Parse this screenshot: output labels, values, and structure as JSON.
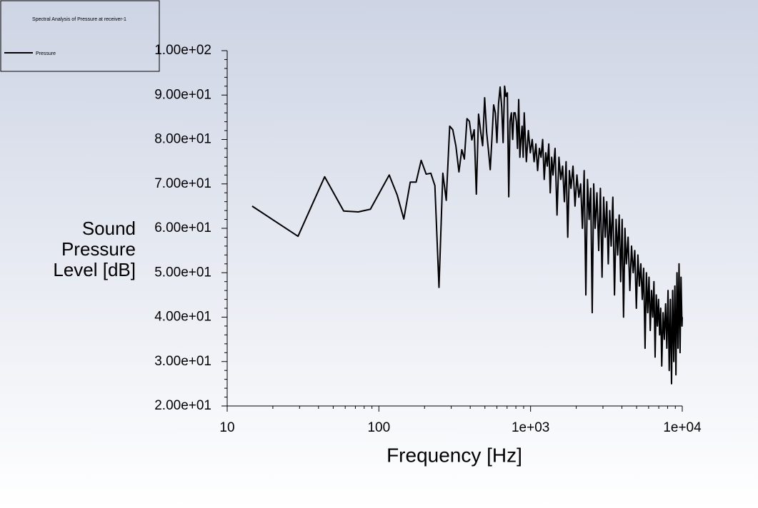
{
  "chart_data": {
    "type": "line",
    "legend_title": "Spectral Analysis of Pressure at receiver-1",
    "xlabel": "Frequency [Hz]",
    "ylabel": "Sound Pressure Level [dB]",
    "xscale": "log",
    "xlim": [
      10,
      10000
    ],
    "ylim": [
      20,
      100
    ],
    "xticks": [
      10,
      100,
      {
        "value": 1000,
        "label": "1e+03"
      },
      {
        "value": 10000,
        "label": "1e+04"
      }
    ],
    "yticks": [
      {
        "value": 20,
        "label": "2.00e+01"
      },
      {
        "value": 30,
        "label": "3.00e+01"
      },
      {
        "value": 40,
        "label": "4.00e+01"
      },
      {
        "value": 50,
        "label": "5.00e+01"
      },
      {
        "value": 60,
        "label": "6.00e+01"
      },
      {
        "value": 70,
        "label": "7.00e+01"
      },
      {
        "value": 80,
        "label": "8.00e+01"
      },
      {
        "value": 90,
        "label": "9.00e+01"
      },
      {
        "value": 100,
        "label": "1.00e+02"
      }
    ],
    "legend": "top-left",
    "x": [
      14.6,
      29.3,
      43.9,
      58.6,
      73.2,
      87.9,
      117,
      132,
      146,
      161,
      176,
      190,
      205,
      220,
      234,
      249,
      264,
      278,
      293,
      307,
      322,
      337,
      352,
      366,
      381,
      395,
      410,
      425,
      439,
      454,
      469,
      483,
      498,
      513,
      527,
      542,
      557,
      571,
      586,
      600,
      615,
      630,
      645,
      659,
      674,
      688,
      703,
      718,
      732,
      747,
      762,
      776,
      791,
      806,
      820,
      835,
      850,
      864,
      879,
      894,
      908,
      938,
      967,
      996,
      1025,
      1055,
      1084,
      1113,
      1143,
      1172,
      1201,
      1230,
      1260,
      1289,
      1318,
      1348,
      1377,
      1406,
      1450,
      1494,
      1538,
      1582,
      1626,
      1670,
      1714,
      1758,
      1802,
      1846,
      1904,
      1963,
      2021,
      2080,
      2138,
      2197,
      2256,
      2314,
      2373,
      2432,
      2490,
      2549,
      2607,
      2666,
      2739,
      2812,
      2886,
      2959,
      3032,
      3105,
      3178,
      3252,
      3325,
      3398,
      3486,
      3574,
      3662,
      3750,
      3838,
      3926,
      4014,
      4101,
      4189,
      4277,
      4394,
      4512,
      4629,
      4746,
      4863,
      4980,
      5098,
      5215,
      5332,
      5449,
      5566,
      5684,
      5801,
      5918,
      6035,
      6152,
      6270,
      6387,
      6504,
      6621,
      6738,
      6856,
      6973,
      7090,
      7207,
      7324,
      7471,
      7617,
      7764,
      7910,
      8057,
      8203,
      8350,
      8496,
      8643,
      8789,
      8936,
      9082,
      9229,
      9375,
      9521,
      9668,
      9814,
      9961,
      10000
    ],
    "series": [
      {
        "name": "Pressure",
        "color": "#000000",
        "values": [
          65.0,
          58.2,
          71.6,
          63.9,
          63.7,
          64.3,
          72.0,
          67.5,
          62.1,
          70.4,
          70.4,
          75.3,
          72.2,
          72.4,
          69.6,
          46.7,
          72.4,
          66.3,
          83.0,
          82.2,
          78.5,
          72.7,
          77.7,
          75.6,
          84.7,
          84.1,
          79.9,
          82.2,
          67.7,
          85.7,
          81.7,
          78.6,
          89.4,
          81.7,
          77.7,
          73.2,
          80.6,
          87.8,
          86.0,
          79.3,
          88.1,
          91.8,
          87.3,
          79.3,
          92.0,
          89.7,
          90.5,
          67.1,
          84.1,
          86,
          80,
          86,
          86,
          84,
          78,
          89,
          76,
          80,
          83,
          76,
          86,
          75,
          82,
          77,
          80,
          75,
          79,
          73,
          78,
          76,
          80,
          71,
          77,
          74,
          79,
          68,
          76,
          72,
          78,
          63,
          76,
          71,
          74,
          66,
          75,
          58,
          73,
          69,
          74,
          65,
          72,
          67,
          70,
          60,
          73,
          45,
          71,
          62,
          69,
          41,
          70,
          60,
          68,
          55,
          69,
          49,
          67,
          58,
          66,
          52,
          64,
          56,
          67,
          45,
          62,
          54,
          63,
          48,
          62,
          40,
          60,
          52,
          58,
          46,
          56,
          50,
          55,
          42,
          54,
          47,
          52,
          44,
          51,
          33,
          50,
          41,
          49,
          37,
          46,
          40,
          48,
          31,
          45,
          38,
          44,
          36,
          42,
          29,
          41,
          35,
          43,
          33,
          46,
          28,
          44,
          25,
          46,
          30,
          47,
          27,
          50,
          33,
          52,
          32,
          49,
          38,
          40
        ]
      }
    ]
  }
}
